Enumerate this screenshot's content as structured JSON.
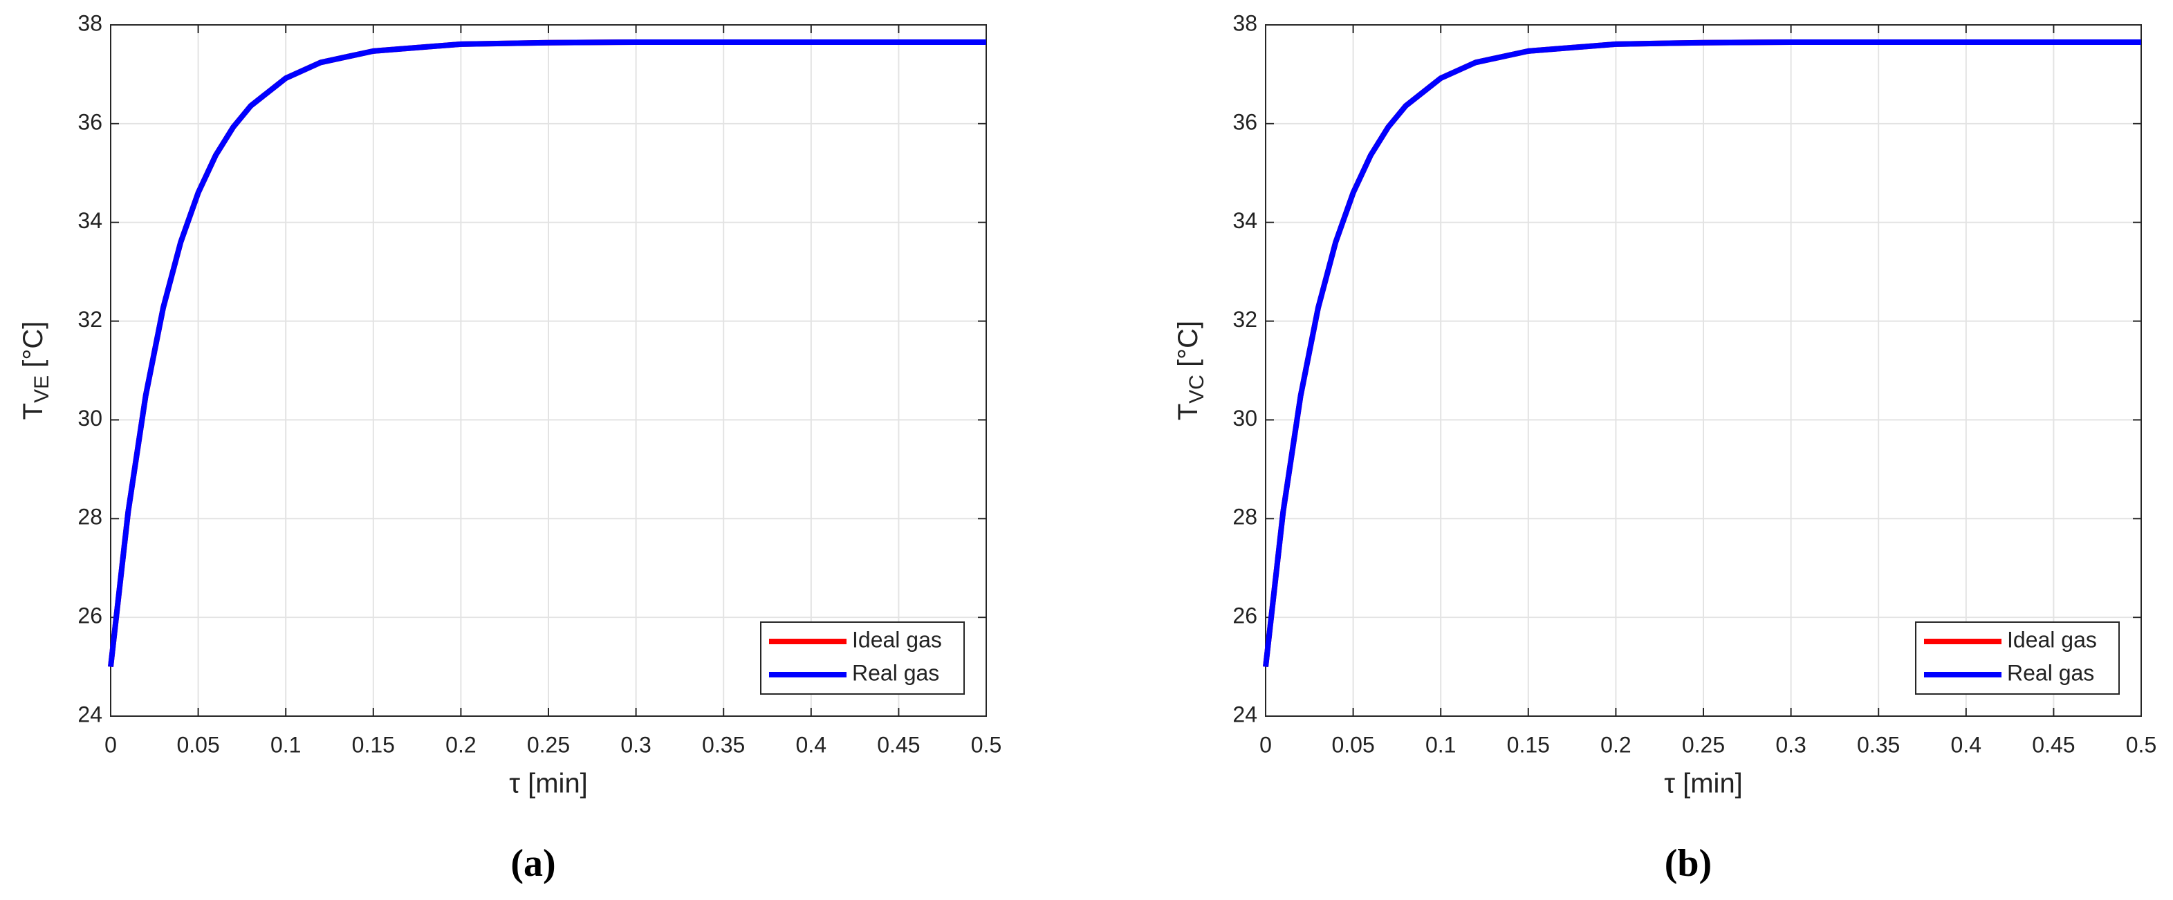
{
  "chart_data": [
    {
      "type": "line",
      "caption": "(a)",
      "xlabel": "τ [min]",
      "ylabel": "T",
      "ylabel_sub": "VE",
      "ylabel_unit": " [°C]",
      "x": [
        0,
        0.01,
        0.02,
        0.03,
        0.04,
        0.05,
        0.06,
        0.07,
        0.08,
        0.1,
        0.12,
        0.15,
        0.2,
        0.25,
        0.3,
        0.4,
        0.5
      ],
      "series": [
        {
          "name": "Ideal gas",
          "color": "#ff0000",
          "values": [
            25,
            28.14,
            30.49,
            32.27,
            33.6,
            34.6,
            35.36,
            35.93,
            36.36,
            36.92,
            37.24,
            37.47,
            37.61,
            37.64,
            37.65,
            37.65,
            37.65
          ]
        },
        {
          "name": "Real gas",
          "color": "#0000ff",
          "values": [
            25,
            28.14,
            30.49,
            32.27,
            33.6,
            34.6,
            35.36,
            35.93,
            36.36,
            36.92,
            37.24,
            37.47,
            37.61,
            37.64,
            37.65,
            37.65,
            37.65
          ]
        }
      ],
      "xlim": [
        0,
        0.5
      ],
      "xticks": [
        0,
        0.05,
        0.1,
        0.15,
        0.2,
        0.25,
        0.3,
        0.35,
        0.4,
        0.45,
        0.5
      ],
      "ylim": [
        24,
        38
      ],
      "yticks": [
        24,
        26,
        28,
        30,
        32,
        34,
        36,
        38
      ],
      "grid": true,
      "legend": "lower right"
    },
    {
      "type": "line",
      "caption": "(b)",
      "xlabel": "τ [min]",
      "ylabel": "T",
      "ylabel_sub": "VC",
      "ylabel_unit": " [°C]",
      "x": [
        0,
        0.01,
        0.02,
        0.03,
        0.04,
        0.05,
        0.06,
        0.07,
        0.08,
        0.1,
        0.12,
        0.15,
        0.2,
        0.25,
        0.3,
        0.4,
        0.5
      ],
      "series": [
        {
          "name": "Ideal gas",
          "color": "#ff0000",
          "values": [
            25,
            28.14,
            30.49,
            32.27,
            33.6,
            34.6,
            35.36,
            35.93,
            36.36,
            36.92,
            37.24,
            37.47,
            37.61,
            37.64,
            37.65,
            37.65,
            37.65
          ]
        },
        {
          "name": "Real gas",
          "color": "#0000ff",
          "values": [
            25,
            28.14,
            30.49,
            32.27,
            33.6,
            34.6,
            35.36,
            35.93,
            36.36,
            36.92,
            37.24,
            37.47,
            37.61,
            37.64,
            37.65,
            37.65,
            37.65
          ]
        }
      ],
      "xlim": [
        0,
        0.5
      ],
      "xticks": [
        0,
        0.05,
        0.1,
        0.15,
        0.2,
        0.25,
        0.3,
        0.35,
        0.4,
        0.45,
        0.5
      ],
      "ylim": [
        24,
        38
      ],
      "yticks": [
        24,
        26,
        28,
        30,
        32,
        34,
        36,
        38
      ],
      "grid": true,
      "legend": "lower right"
    }
  ]
}
